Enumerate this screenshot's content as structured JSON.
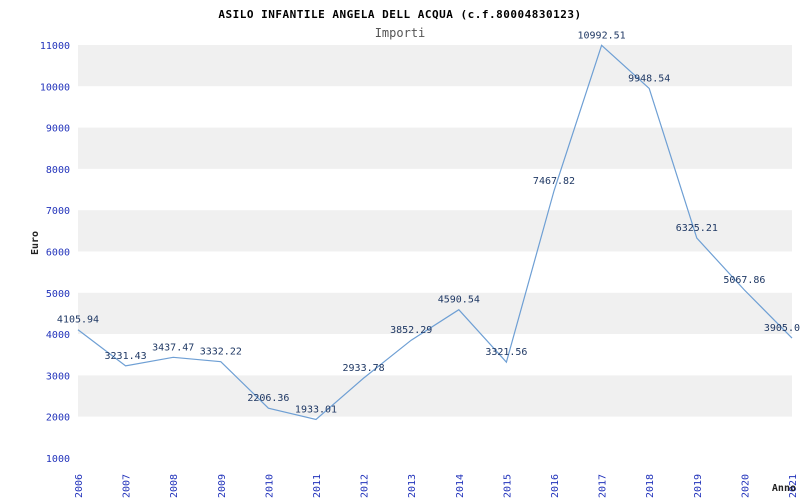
{
  "header": {
    "title": "ASILO INFANTILE ANGELA DELL ACQUA (c.f.80004830123)",
    "subtitle": "Importi"
  },
  "chart_data": {
    "type": "line",
    "title": "ASILO INFANTILE ANGELA DELL ACQUA (c.f.80004830123)",
    "subtitle": "Importi",
    "xlabel": "Anno",
    "ylabel": "Euro",
    "x": [
      "2006",
      "2007",
      "2008",
      "2009",
      "2010",
      "2011",
      "2012",
      "2013",
      "2014",
      "2015",
      "2016",
      "2017",
      "2018",
      "2019",
      "2020",
      "2021"
    ],
    "values": [
      4105.94,
      3231.43,
      3437.47,
      3332.22,
      2206.36,
      1933.01,
      2933.78,
      3852.29,
      4590.54,
      3321.56,
      7467.82,
      10992.51,
      9948.54,
      6325.21,
      5067.86,
      3905.0
    ],
    "labels": [
      "4105.94",
      "3231.43",
      "3437.47",
      "3332.22",
      "2206.36",
      "1933.01",
      "2933.78",
      "3852.29",
      "4590.54",
      "3321.56",
      "7467.82",
      "10992.51",
      "9948.54",
      "6325.21",
      "5067.86",
      "3905.0"
    ],
    "ylim": [
      1000,
      11000
    ],
    "ytick_step": 1000,
    "grid": "alternating-bands",
    "legend": "none",
    "colors": {
      "line": "#6e9fd4",
      "tick": "#2233bb",
      "value_label": "#1f3864",
      "band": "#f0f0f0",
      "background": "#ffffff"
    }
  }
}
